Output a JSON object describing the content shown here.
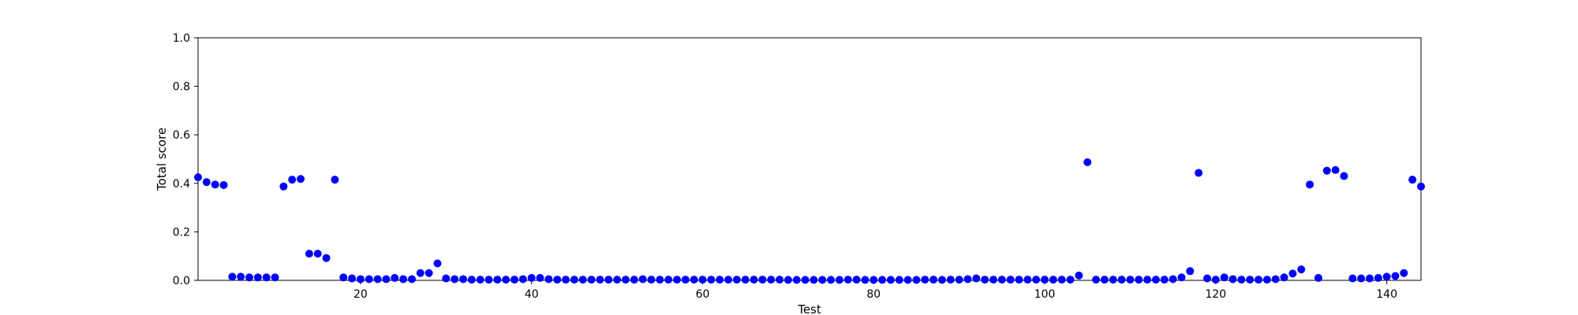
{
  "chart_data": {
    "type": "scatter",
    "title": "",
    "xlabel": "Test",
    "ylabel": "Total score",
    "xlim": [
      1,
      144
    ],
    "ylim": [
      0.0,
      1.0
    ],
    "xticks": [
      20,
      40,
      60,
      80,
      100,
      120,
      140
    ],
    "yticks": [
      0.0,
      0.2,
      0.4,
      0.6,
      0.8,
      1.0
    ],
    "xtick_labels": [
      "20",
      "40",
      "60",
      "80",
      "100",
      "120",
      "140"
    ],
    "ytick_labels": [
      "0.0",
      "0.2",
      "0.4",
      "0.6",
      "0.8",
      "1.0"
    ],
    "grid": false,
    "marker_color": "#0000ff",
    "series": [
      {
        "x": [
          1,
          2,
          3,
          4,
          5,
          6,
          7,
          8,
          9,
          10,
          11,
          12,
          13,
          14,
          15,
          16,
          17,
          18,
          19,
          20,
          21,
          22,
          23,
          24,
          25,
          26,
          27,
          28,
          29,
          30,
          31,
          32,
          33,
          34,
          35,
          36,
          37,
          38,
          39,
          40,
          41,
          42,
          43,
          44,
          45,
          46,
          47,
          48,
          49,
          50,
          51,
          52,
          53,
          54,
          55,
          56,
          57,
          58,
          59,
          60,
          61,
          62,
          63,
          64,
          65,
          66,
          67,
          68,
          69,
          70,
          71,
          72,
          73,
          74,
          75,
          76,
          77,
          78,
          79,
          80,
          81,
          82,
          83,
          84,
          85,
          86,
          87,
          88,
          89,
          90,
          91,
          92,
          93,
          94,
          95,
          96,
          97,
          98,
          99,
          100,
          101,
          102,
          103,
          104,
          105,
          106,
          107,
          108,
          109,
          110,
          111,
          112,
          113,
          114,
          115,
          116,
          117,
          118,
          119,
          120,
          121,
          122,
          123,
          124,
          125,
          126,
          127,
          128,
          129,
          130,
          131,
          132,
          133,
          134,
          135,
          136,
          137,
          138,
          139,
          140,
          141,
          142,
          143,
          144
        ],
        "y": [
          0.425,
          0.405,
          0.395,
          0.393,
          0.015,
          0.015,
          0.012,
          0.012,
          0.012,
          0.012,
          0.387,
          0.415,
          0.418,
          0.11,
          0.11,
          0.092,
          0.415,
          0.012,
          0.008,
          0.005,
          0.005,
          0.005,
          0.005,
          0.01,
          0.005,
          0.005,
          0.03,
          0.03,
          0.07,
          0.008,
          0.005,
          0.005,
          0.003,
          0.003,
          0.003,
          0.003,
          0.003,
          0.003,
          0.005,
          0.01,
          0.01,
          0.005,
          0.003,
          0.003,
          0.003,
          0.003,
          0.003,
          0.003,
          0.003,
          0.003,
          0.003,
          0.003,
          0.005,
          0.003,
          0.003,
          0.003,
          0.003,
          0.003,
          0.003,
          0.003,
          0.003,
          0.003,
          0.003,
          0.003,
          0.003,
          0.003,
          0.003,
          0.003,
          0.003,
          0.002,
          0.002,
          0.002,
          0.002,
          0.002,
          0.002,
          0.002,
          0.003,
          0.003,
          0.002,
          0.002,
          0.002,
          0.002,
          0.002,
          0.002,
          0.002,
          0.003,
          0.003,
          0.002,
          0.003,
          0.003,
          0.005,
          0.008,
          0.003,
          0.003,
          0.003,
          0.003,
          0.003,
          0.003,
          0.003,
          0.003,
          0.003,
          0.003,
          0.003,
          0.02,
          0.487,
          0.003,
          0.003,
          0.003,
          0.003,
          0.003,
          0.003,
          0.003,
          0.003,
          0.003,
          0.005,
          0.012,
          0.038,
          0.443,
          0.008,
          0.003,
          0.012,
          0.005,
          0.003,
          0.003,
          0.003,
          0.003,
          0.005,
          0.012,
          0.028,
          0.045,
          0.395,
          0.01,
          0.452,
          0.455,
          0.43,
          0.008,
          0.008,
          0.008,
          0.01,
          0.015,
          0.018,
          0.03,
          0.415,
          0.387
        ]
      }
    ]
  }
}
